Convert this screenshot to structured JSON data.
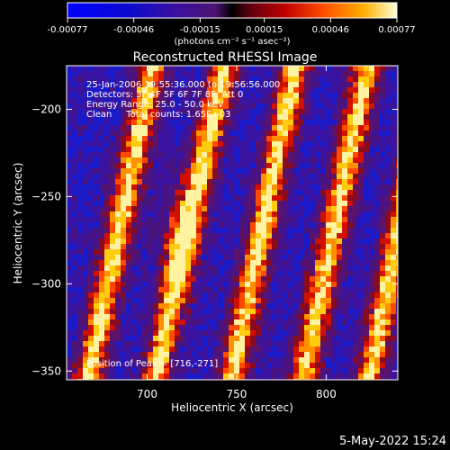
{
  "chart_data": {
    "type": "heatmap",
    "title": "Reconstructed RHESSI Image",
    "xlabel": "Heliocentric X (arcsec)",
    "ylabel": "Heliocentric Y (arcsec)",
    "xlim": [
      655,
      840
    ],
    "ylim": [
      -355,
      -175
    ],
    "x_ticks": [
      "700",
      "750",
      "800"
    ],
    "y_ticks": [
      "-200",
      "-250",
      "-300",
      "-350"
    ],
    "x_tick_values": [
      700,
      750,
      800
    ],
    "y_tick_values": [
      -200,
      -250,
      -300,
      -350
    ],
    "colorbar": {
      "tick_labels": [
        "-0.00077",
        "-0.00046",
        "-0.00015",
        "0.00015",
        "0.00046",
        "0.00077"
      ],
      "tick_values": [
        -0.00077,
        -0.00046,
        -0.00015,
        0.00015,
        0.00046,
        0.00077
      ],
      "range": [
        -0.00077,
        0.00077
      ],
      "units": "(photons cm⁻² s⁻¹ asec⁻²)"
    },
    "annotations": {
      "time": "25-Jan-2006 19:55:36.000 to 19:56:56.000",
      "detectors": "Detectors: 3F 4F 5F 6F 7F 8F, Att 0",
      "energy": "Energy Range: 25.0 - 50.0 keV",
      "clean": "Clean     Total counts: 1.65E+03",
      "peak": "Position of Peak = [716,-271]"
    },
    "peak_position": [
      716,
      -271
    ],
    "bright_ridges": [
      {
        "x_top": 698,
        "y_top": -200,
        "x_bottom": 668,
        "y_bottom": -350
      },
      {
        "x_top": 738,
        "y_top": -200,
        "x_bottom": 705,
        "y_bottom": -350
      },
      {
        "x_top": 778,
        "y_top": -200,
        "x_bottom": 748,
        "y_bottom": -350
      },
      {
        "x_top": 818,
        "y_top": -200,
        "x_bottom": 788,
        "y_bottom": -350
      },
      {
        "x_top": 855,
        "y_top": -200,
        "x_bottom": 825,
        "y_bottom": -350
      }
    ]
  },
  "footer": {
    "date": "5-May-2022 15:24"
  },
  "colors": {
    "background": "#000000",
    "text": "#ffffff"
  }
}
